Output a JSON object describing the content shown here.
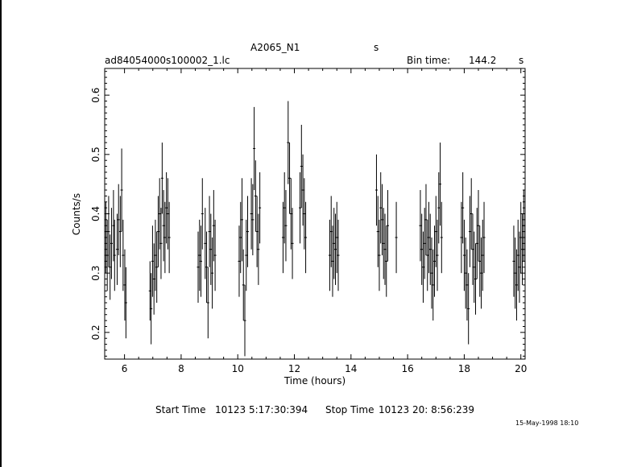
{
  "header": {
    "source_name": "A2065_N1",
    "source_unit": "s",
    "file_name": "ad84054000s100002_1.lc",
    "bin_label": "Bin time:",
    "bin_value": "144.2",
    "bin_unit": "s"
  },
  "footer": {
    "start_label": "Start Time",
    "start_value": "10123  5:17:30:394",
    "stop_label": "Stop Time",
    "stop_value": "10123 20: 8:56:239",
    "stamp": "15-May-1998 18:10"
  },
  "chart_data": {
    "type": "scatter",
    "title": "A2065_N1",
    "xlabel": "Time (hours)",
    "ylabel": "Counts/s",
    "xlim": [
      5.3,
      20.15
    ],
    "ylim": [
      0.155,
      0.645
    ],
    "xticks": [
      6,
      8,
      10,
      12,
      14,
      16,
      18,
      20
    ],
    "yticks": [
      0.2,
      0.3,
      0.4,
      0.5,
      0.6
    ],
    "error_bars": true,
    "grid": false,
    "legend": "none",
    "points": [
      {
        "x": 5.34,
        "y": 0.36,
        "e": 0.06
      },
      {
        "x": 5.39,
        "y": 0.33,
        "e": 0.06
      },
      {
        "x": 5.44,
        "y": 0.37,
        "e": 0.06
      },
      {
        "x": 5.49,
        "y": 0.31,
        "e": 0.055
      },
      {
        "x": 5.54,
        "y": 0.35,
        "e": 0.06
      },
      {
        "x": 5.61,
        "y": 0.38,
        "e": 0.06
      },
      {
        "x": 5.65,
        "y": 0.33,
        "e": 0.06
      },
      {
        "x": 5.74,
        "y": 0.34,
        "e": 0.06
      },
      {
        "x": 5.79,
        "y": 0.39,
        "e": 0.06
      },
      {
        "x": 5.85,
        "y": 0.37,
        "e": 0.06
      },
      {
        "x": 5.9,
        "y": 0.44,
        "e": 0.07
      },
      {
        "x": 5.95,
        "y": 0.33,
        "e": 0.06
      },
      {
        "x": 6.01,
        "y": 0.28,
        "e": 0.06
      },
      {
        "x": 6.05,
        "y": 0.25,
        "e": 0.06
      },
      {
        "x": 6.9,
        "y": 0.27,
        "e": 0.05
      },
      {
        "x": 6.94,
        "y": 0.24,
        "e": 0.06
      },
      {
        "x": 6.99,
        "y": 0.32,
        "e": 0.06
      },
      {
        "x": 7.04,
        "y": 0.29,
        "e": 0.06
      },
      {
        "x": 7.09,
        "y": 0.33,
        "e": 0.06
      },
      {
        "x": 7.14,
        "y": 0.31,
        "e": 0.06
      },
      {
        "x": 7.19,
        "y": 0.37,
        "e": 0.06
      },
      {
        "x": 7.24,
        "y": 0.4,
        "e": 0.06
      },
      {
        "x": 7.29,
        "y": 0.35,
        "e": 0.06
      },
      {
        "x": 7.33,
        "y": 0.46,
        "e": 0.06
      },
      {
        "x": 7.38,
        "y": 0.38,
        "e": 0.06
      },
      {
        "x": 7.43,
        "y": 0.36,
        "e": 0.06
      },
      {
        "x": 7.48,
        "y": 0.41,
        "e": 0.06
      },
      {
        "x": 7.53,
        "y": 0.4,
        "e": 0.06
      },
      {
        "x": 7.58,
        "y": 0.36,
        "e": 0.06
      },
      {
        "x": 8.6,
        "y": 0.31,
        "e": 0.06
      },
      {
        "x": 8.65,
        "y": 0.33,
        "e": 0.06
      },
      {
        "x": 8.7,
        "y": 0.32,
        "e": 0.06
      },
      {
        "x": 8.75,
        "y": 0.4,
        "e": 0.06
      },
      {
        "x": 8.85,
        "y": 0.35,
        "e": 0.06
      },
      {
        "x": 8.9,
        "y": 0.31,
        "e": 0.06
      },
      {
        "x": 8.95,
        "y": 0.25,
        "e": 0.06
      },
      {
        "x": 9.0,
        "y": 0.37,
        "e": 0.06
      },
      {
        "x": 9.05,
        "y": 0.34,
        "e": 0.06
      },
      {
        "x": 9.1,
        "y": 0.3,
        "e": 0.06
      },
      {
        "x": 9.15,
        "y": 0.38,
        "e": 0.06
      },
      {
        "x": 9.2,
        "y": 0.33,
        "e": 0.06
      },
      {
        "x": 10.05,
        "y": 0.32,
        "e": 0.06
      },
      {
        "x": 10.1,
        "y": 0.36,
        "e": 0.06
      },
      {
        "x": 10.15,
        "y": 0.39,
        "e": 0.07
      },
      {
        "x": 10.2,
        "y": 0.28,
        "e": 0.06
      },
      {
        "x": 10.25,
        "y": 0.22,
        "e": 0.06
      },
      {
        "x": 10.3,
        "y": 0.33,
        "e": 0.06
      },
      {
        "x": 10.35,
        "y": 0.37,
        "e": 0.06
      },
      {
        "x": 10.48,
        "y": 0.4,
        "e": 0.06
      },
      {
        "x": 10.53,
        "y": 0.39,
        "e": 0.06
      },
      {
        "x": 10.58,
        "y": 0.51,
        "e": 0.07
      },
      {
        "x": 10.63,
        "y": 0.43,
        "e": 0.06
      },
      {
        "x": 10.68,
        "y": 0.37,
        "e": 0.06
      },
      {
        "x": 10.73,
        "y": 0.34,
        "e": 0.06
      },
      {
        "x": 10.78,
        "y": 0.41,
        "e": 0.06
      },
      {
        "x": 11.6,
        "y": 0.36,
        "e": 0.06
      },
      {
        "x": 11.65,
        "y": 0.41,
        "e": 0.06
      },
      {
        "x": 11.7,
        "y": 0.38,
        "e": 0.06
      },
      {
        "x": 11.78,
        "y": 0.52,
        "e": 0.07
      },
      {
        "x": 11.83,
        "y": 0.46,
        "e": 0.06
      },
      {
        "x": 11.88,
        "y": 0.4,
        "e": 0.06
      },
      {
        "x": 11.93,
        "y": 0.35,
        "e": 0.06
      },
      {
        "x": 12.2,
        "y": 0.41,
        "e": 0.06
      },
      {
        "x": 12.25,
        "y": 0.48,
        "e": 0.07
      },
      {
        "x": 12.3,
        "y": 0.44,
        "e": 0.06
      },
      {
        "x": 12.35,
        "y": 0.4,
        "e": 0.06
      },
      {
        "x": 12.4,
        "y": 0.36,
        "e": 0.06
      },
      {
        "x": 13.25,
        "y": 0.33,
        "e": 0.06
      },
      {
        "x": 13.3,
        "y": 0.37,
        "e": 0.06
      },
      {
        "x": 13.35,
        "y": 0.32,
        "e": 0.06
      },
      {
        "x": 13.4,
        "y": 0.35,
        "e": 0.06
      },
      {
        "x": 13.45,
        "y": 0.34,
        "e": 0.06
      },
      {
        "x": 13.5,
        "y": 0.36,
        "e": 0.06
      },
      {
        "x": 13.55,
        "y": 0.33,
        "e": 0.06
      },
      {
        "x": 14.9,
        "y": 0.44,
        "e": 0.06
      },
      {
        "x": 14.95,
        "y": 0.37,
        "e": 0.06
      },
      {
        "x": 15.0,
        "y": 0.33,
        "e": 0.06
      },
      {
        "x": 15.05,
        "y": 0.41,
        "e": 0.06
      },
      {
        "x": 15.1,
        "y": 0.39,
        "e": 0.06
      },
      {
        "x": 15.15,
        "y": 0.35,
        "e": 0.06
      },
      {
        "x": 15.2,
        "y": 0.34,
        "e": 0.06
      },
      {
        "x": 15.25,
        "y": 0.32,
        "e": 0.06
      },
      {
        "x": 15.3,
        "y": 0.38,
        "e": 0.06
      },
      {
        "x": 15.6,
        "y": 0.36,
        "e": 0.06
      },
      {
        "x": 16.45,
        "y": 0.38,
        "e": 0.06
      },
      {
        "x": 16.5,
        "y": 0.34,
        "e": 0.06
      },
      {
        "x": 16.55,
        "y": 0.31,
        "e": 0.06
      },
      {
        "x": 16.6,
        "y": 0.35,
        "e": 0.06
      },
      {
        "x": 16.65,
        "y": 0.39,
        "e": 0.06
      },
      {
        "x": 16.7,
        "y": 0.33,
        "e": 0.06
      },
      {
        "x": 16.75,
        "y": 0.36,
        "e": 0.06
      },
      {
        "x": 16.8,
        "y": 0.34,
        "e": 0.06
      },
      {
        "x": 16.85,
        "y": 0.3,
        "e": 0.06
      },
      {
        "x": 16.9,
        "y": 0.28,
        "e": 0.06
      },
      {
        "x": 16.95,
        "y": 0.32,
        "e": 0.06
      },
      {
        "x": 17.0,
        "y": 0.37,
        "e": 0.06
      },
      {
        "x": 17.05,
        "y": 0.33,
        "e": 0.06
      },
      {
        "x": 17.1,
        "y": 0.41,
        "e": 0.06
      },
      {
        "x": 17.15,
        "y": 0.45,
        "e": 0.07
      },
      {
        "x": 17.2,
        "y": 0.36,
        "e": 0.06
      },
      {
        "x": 17.9,
        "y": 0.36,
        "e": 0.06
      },
      {
        "x": 17.95,
        "y": 0.41,
        "e": 0.06
      },
      {
        "x": 18.0,
        "y": 0.33,
        "e": 0.06
      },
      {
        "x": 18.05,
        "y": 0.3,
        "e": 0.06
      },
      {
        "x": 18.1,
        "y": 0.28,
        "e": 0.06
      },
      {
        "x": 18.15,
        "y": 0.24,
        "e": 0.06
      },
      {
        "x": 18.2,
        "y": 0.37,
        "e": 0.06
      },
      {
        "x": 18.25,
        "y": 0.4,
        "e": 0.06
      },
      {
        "x": 18.3,
        "y": 0.34,
        "e": 0.06
      },
      {
        "x": 18.35,
        "y": 0.31,
        "e": 0.06
      },
      {
        "x": 18.4,
        "y": 0.29,
        "e": 0.06
      },
      {
        "x": 18.45,
        "y": 0.35,
        "e": 0.06
      },
      {
        "x": 18.5,
        "y": 0.38,
        "e": 0.06
      },
      {
        "x": 18.55,
        "y": 0.32,
        "e": 0.06
      },
      {
        "x": 18.6,
        "y": 0.3,
        "e": 0.06
      },
      {
        "x": 18.65,
        "y": 0.33,
        "e": 0.06
      },
      {
        "x": 18.7,
        "y": 0.36,
        "e": 0.06
      },
      {
        "x": 19.75,
        "y": 0.32,
        "e": 0.06
      },
      {
        "x": 19.8,
        "y": 0.3,
        "e": 0.06
      },
      {
        "x": 19.85,
        "y": 0.28,
        "e": 0.06
      },
      {
        "x": 19.9,
        "y": 0.33,
        "e": 0.06
      },
      {
        "x": 19.95,
        "y": 0.31,
        "e": 0.06
      },
      {
        "x": 20.0,
        "y": 0.36,
        "e": 0.06
      },
      {
        "x": 20.05,
        "y": 0.34,
        "e": 0.06
      },
      {
        "x": 20.1,
        "y": 0.38,
        "e": 0.06
      }
    ]
  }
}
